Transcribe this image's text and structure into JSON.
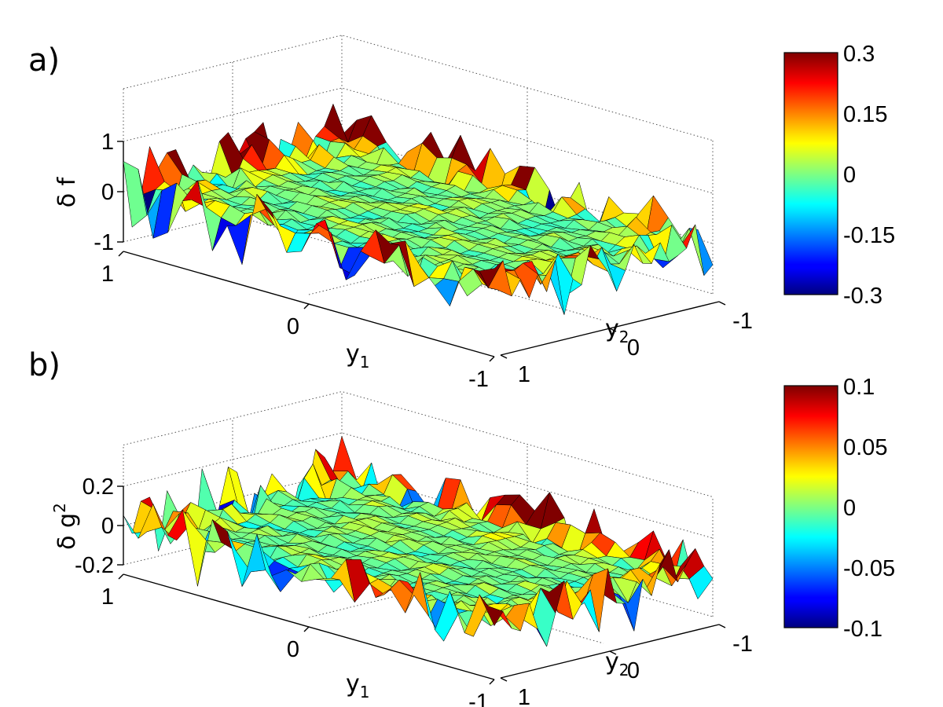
{
  "chart_data": [
    {
      "type": "surface",
      "panel_label": "a)",
      "zlabel": {
        "symbol": "δ",
        "name": "f",
        "superscript": ""
      },
      "xlabel": {
        "base": "y",
        "sub": "1"
      },
      "ylabel": {
        "base": "y",
        "sub": "2"
      },
      "x_range": [
        -1,
        1
      ],
      "y_range": [
        -1,
        1
      ],
      "z_range": [
        -1,
        1
      ],
      "x_ticks": [
        "1",
        "0",
        "-1"
      ],
      "y_ticks": [
        "1",
        "0",
        "-1"
      ],
      "z_ticks": [
        "1",
        "0",
        "-1"
      ],
      "grid": true,
      "colormap": "jet",
      "colorbar": {
        "range": [
          -0.3,
          0.3
        ],
        "ticks": [
          "0.3",
          "0.15",
          "0",
          "-0.15",
          "-0.3"
        ]
      },
      "grid_size": 25,
      "noise_amplitude": 0.3,
      "seed": 7
    },
    {
      "type": "surface",
      "panel_label": "b)",
      "zlabel": {
        "symbol": "δ",
        "name": "g",
        "superscript": "2"
      },
      "xlabel": {
        "base": "y",
        "sub": "1"
      },
      "ylabel": {
        "base": "y",
        "sub": "2"
      },
      "x_range": [
        -1,
        1
      ],
      "y_range": [
        -1,
        1
      ],
      "z_range": [
        -0.25,
        0.25
      ],
      "x_ticks": [
        "1",
        "0",
        "-1"
      ],
      "y_ticks": [
        "1",
        "0",
        "-1"
      ],
      "z_ticks": [
        "0.2",
        "0",
        "-0.2"
      ],
      "grid": true,
      "colormap": "jet",
      "colorbar": {
        "range": [
          -0.1,
          0.1
        ],
        "ticks": [
          "0.1",
          "0.05",
          "0",
          "-0.05",
          "-0.1"
        ]
      },
      "grid_size": 25,
      "noise_amplitude": 0.1,
      "seed": 13
    }
  ]
}
